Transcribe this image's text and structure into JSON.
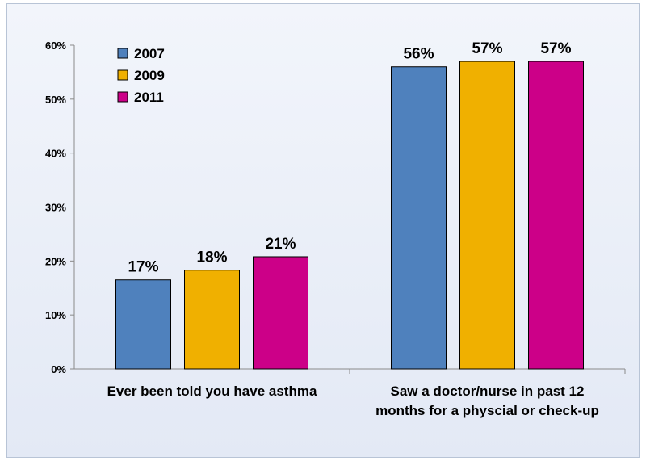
{
  "chart_data": {
    "type": "bar",
    "title": "",
    "xlabel": "",
    "ylabel": "",
    "ylim": [
      0,
      60
    ],
    "y_ticks": [
      "0%",
      "10%",
      "20%",
      "30%",
      "40%",
      "50%",
      "60%"
    ],
    "categories": [
      [
        "Ever been told you have asthma"
      ],
      [
        "Saw a doctor/nurse in past 12",
        "months for  a physcial or check-up"
      ]
    ],
    "series": [
      {
        "name": "2007",
        "color": "#4f81bd",
        "values": [
          16.5,
          56
        ],
        "labels": [
          "17%",
          "56%"
        ]
      },
      {
        "name": "2009",
        "color": "#f0b000",
        "values": [
          18.3,
          57
        ],
        "labels": [
          "18%",
          "57%"
        ]
      },
      {
        "name": "2011",
        "color": "#cc0088",
        "values": [
          20.8,
          57
        ],
        "labels": [
          "21%",
          "57%"
        ]
      }
    ],
    "legend_position": "top-left",
    "grid": false
  }
}
